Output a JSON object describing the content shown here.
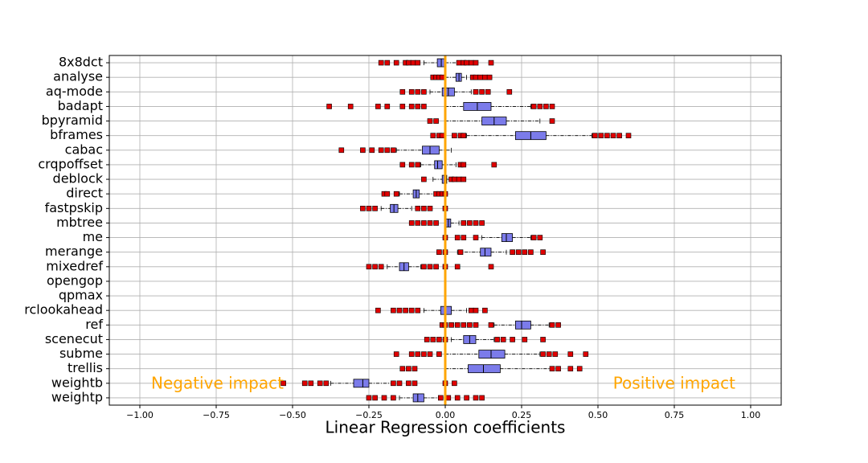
{
  "chart_data": {
    "type": "boxplot",
    "orientation": "horizontal",
    "x_label": "Linear Regression coefficients",
    "categories": [
      "8x8dct",
      "analyse",
      "aq-mode",
      "badapt",
      "bpyramid",
      "bframes",
      "cabac",
      "crqpoffset",
      "deblock",
      "direct",
      "fastpskip",
      "mbtree",
      "me",
      "merange",
      "mixedref",
      "opengop",
      "qpmax",
      "rclookahead",
      "ref",
      "scenecut",
      "subme",
      "trellis",
      "weightb",
      "weightp"
    ],
    "boxes": [
      {
        "low": -0.07,
        "q1": -0.026,
        "median": -0.013,
        "q3": 0,
        "high": 0.04,
        "outliers": [
          -0.21,
          -0.19,
          -0.16,
          -0.13,
          -0.12,
          -0.105,
          -0.09,
          0.045,
          0.06,
          0.07,
          0.085,
          0.1,
          0.15
        ]
      },
      {
        "low": 0,
        "q1": 0.035,
        "median": 0.045,
        "q3": 0.053,
        "high": 0.07,
        "outliers": [
          -0.04,
          -0.03,
          -0.02,
          -0.01,
          0.09,
          0.1,
          0.115,
          0.13,
          0.145
        ]
      },
      {
        "low": -0.05,
        "q1": -0.01,
        "median": 0.01,
        "q3": 0.03,
        "high": 0.085,
        "outliers": [
          -0.14,
          -0.11,
          -0.09,
          -0.07,
          0.1,
          0.12,
          0.14,
          0.21
        ]
      },
      {
        "low": 0,
        "q1": 0.06,
        "median": 0.105,
        "q3": 0.15,
        "high": 0.28,
        "outliers": [
          -0.38,
          -0.31,
          -0.22,
          -0.19,
          -0.14,
          -0.11,
          -0.09,
          -0.07,
          0.29,
          0.31,
          0.33,
          0.35
        ]
      },
      {
        "low": 0,
        "q1": 0.12,
        "median": 0.16,
        "q3": 0.2,
        "high": 0.31,
        "outliers": [
          -0.05,
          -0.03,
          0.35
        ]
      },
      {
        "low": 0.07,
        "q1": 0.23,
        "median": 0.28,
        "q3": 0.33,
        "high": 0.48,
        "outliers": [
          -0.04,
          -0.02,
          -0.01,
          0.03,
          0.05,
          0.06,
          0.49,
          0.51,
          0.53,
          0.55,
          0.57,
          0.6
        ]
      },
      {
        "low": -0.16,
        "q1": -0.075,
        "median": -0.05,
        "q3": -0.02,
        "high": 0.02,
        "outliers": [
          -0.34,
          -0.27,
          -0.24,
          -0.21,
          -0.19,
          -0.17
        ]
      },
      {
        "low": -0.08,
        "q1": -0.035,
        "median": -0.025,
        "q3": -0.01,
        "high": 0.035,
        "outliers": [
          -0.14,
          -0.11,
          -0.09,
          0.05,
          0.06,
          0.16
        ]
      },
      {
        "low": -0.04,
        "q1": -0.01,
        "median": -0.003,
        "q3": 0.005,
        "high": 0.013,
        "outliers": [
          -0.07,
          0.02,
          0.03,
          0.045,
          0.06
        ]
      },
      {
        "low": -0.15,
        "q1": -0.105,
        "median": -0.095,
        "q3": -0.085,
        "high": -0.035,
        "outliers": [
          -0.2,
          -0.19,
          -0.16,
          -0.03,
          -0.02,
          -0.01,
          0
        ]
      },
      {
        "low": -0.21,
        "q1": -0.18,
        "median": -0.168,
        "q3": -0.155,
        "high": -0.11,
        "outliers": [
          -0.27,
          -0.25,
          -0.23,
          -0.09,
          -0.07,
          -0.05,
          0
        ]
      },
      {
        "low": 0,
        "q1": 0.002,
        "median": 0.01,
        "q3": 0.018,
        "high": 0.045,
        "outliers": [
          -0.11,
          -0.09,
          -0.07,
          -0.05,
          -0.03,
          0.06,
          0.08,
          0.1,
          0.12
        ]
      },
      {
        "low": 0.12,
        "q1": 0.185,
        "median": 0.2,
        "q3": 0.22,
        "high": 0.28,
        "outliers": [
          0,
          0.04,
          0.06,
          0.1,
          0.29,
          0.31
        ]
      },
      {
        "low": 0.04,
        "q1": 0.115,
        "median": 0.13,
        "q3": 0.15,
        "high": 0.2,
        "outliers": [
          -0.02,
          0,
          0.05,
          0.22,
          0.24,
          0.26,
          0.28,
          0.32
        ]
      },
      {
        "low": -0.19,
        "q1": -0.15,
        "median": -0.135,
        "q3": -0.12,
        "high": -0.08,
        "outliers": [
          -0.25,
          -0.23,
          -0.21,
          -0.07,
          -0.05,
          -0.03,
          0,
          0.04,
          0.15
        ]
      },
      {
        "low": 0,
        "q1": 0,
        "median": 0,
        "q3": 0,
        "high": 0,
        "outliers": []
      },
      {
        "low": 0,
        "q1": 0,
        "median": 0,
        "q3": 0,
        "high": 0,
        "outliers": []
      },
      {
        "low": -0.07,
        "q1": -0.015,
        "median": 0,
        "q3": 0.02,
        "high": 0.07,
        "outliers": [
          -0.22,
          -0.17,
          -0.15,
          -0.13,
          -0.11,
          -0.09,
          0.085,
          0.1,
          0.13
        ]
      },
      {
        "low": 0.16,
        "q1": 0.23,
        "median": 0.25,
        "q3": 0.28,
        "high": 0.34,
        "outliers": [
          -0.01,
          0,
          0.02,
          0.04,
          0.06,
          0.08,
          0.1,
          0.15,
          0.35,
          0.37
        ]
      },
      {
        "low": 0.02,
        "q1": 0.06,
        "median": 0.08,
        "q3": 0.1,
        "high": 0.16,
        "outliers": [
          -0.06,
          -0.04,
          -0.02,
          0,
          0.17,
          0.19,
          0.22,
          0.26,
          0.32
        ]
      },
      {
        "low": 0,
        "q1": 0.11,
        "median": 0.15,
        "q3": 0.195,
        "high": 0.31,
        "outliers": [
          -0.16,
          -0.11,
          -0.09,
          -0.07,
          -0.05,
          -0.02,
          0.32,
          0.34,
          0.36,
          0.41,
          0.46
        ]
      },
      {
        "low": 0,
        "q1": 0.075,
        "median": 0.125,
        "q3": 0.18,
        "high": 0.345,
        "outliers": [
          -0.14,
          -0.12,
          -0.1,
          0.35,
          0.37,
          0.41,
          0.44
        ]
      },
      {
        "low": -0.375,
        "q1": -0.3,
        "median": -0.27,
        "q3": -0.25,
        "high": -0.175,
        "outliers": [
          -0.53,
          -0.46,
          -0.44,
          -0.41,
          -0.39,
          -0.17,
          -0.15,
          -0.12,
          -0.1,
          0,
          0.03
        ]
      },
      {
        "low": -0.15,
        "q1": -0.105,
        "median": -0.09,
        "q3": -0.07,
        "high": -0.02,
        "outliers": [
          -0.25,
          -0.23,
          -0.2,
          -0.17,
          -0.015,
          0.01,
          0.04,
          0.07,
          0.1,
          0.12
        ]
      }
    ],
    "box_color": "#7b7bea",
    "outlier_color": "#e00000",
    "reference_line": 0,
    "reference_color": "#ffa500",
    "annotations": [
      {
        "text": "Negative impact",
        "color": "#ffa500"
      },
      {
        "text": "Positive impact",
        "color": "#ffa500"
      }
    ],
    "xlim": [
      -1.1,
      1.1
    ],
    "xticks": [
      {
        "value": -1,
        "label": "−1.00"
      },
      {
        "value": -0.75,
        "label": "−0.75"
      },
      {
        "value": -0.5,
        "label": "−0.50"
      },
      {
        "value": -0.25,
        "label": "−0.25"
      },
      {
        "value": 0,
        "label": "0.00"
      },
      {
        "value": 0.25,
        "label": "0.25"
      },
      {
        "value": 0.5,
        "label": "0.50"
      },
      {
        "value": 0.75,
        "label": "0.75"
      },
      {
        "value": 1,
        "label": "1.00"
      }
    ],
    "grid": true
  }
}
